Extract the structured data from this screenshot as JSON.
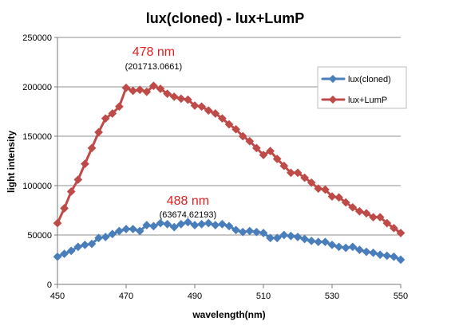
{
  "chart_data": {
    "type": "line",
    "title": "lux(cloned) - lux+LumP",
    "xlabel": "wavelength(nm)",
    "ylabel": "light intensity",
    "xlim": [
      450,
      550
    ],
    "ylim": [
      0,
      250000
    ],
    "x_ticks": [
      450,
      470,
      490,
      510,
      530,
      550
    ],
    "y_ticks": [
      0,
      50000,
      100000,
      150000,
      200000,
      250000
    ],
    "y_tick_labels": [
      "0",
      "50000",
      "100000",
      "150000",
      "200000",
      "250000"
    ],
    "grid": "horizontal",
    "legend_position": "right",
    "x": [
      450,
      452,
      454,
      456,
      458,
      460,
      462,
      464,
      466,
      468,
      470,
      472,
      474,
      476,
      478,
      480,
      482,
      484,
      486,
      488,
      490,
      492,
      494,
      496,
      498,
      500,
      502,
      504,
      506,
      508,
      510,
      512,
      514,
      516,
      518,
      520,
      522,
      524,
      526,
      528,
      530,
      532,
      534,
      536,
      538,
      540,
      542,
      544,
      546,
      548,
      550
    ],
    "series": [
      {
        "name": "lux(cloned)",
        "color": "#4a7ebb",
        "values": [
          28000,
          31000,
          34000,
          38000,
          40000,
          41000,
          47000,
          48000,
          51000,
          54000,
          56000,
          56000,
          54000,
          60000,
          59000,
          62000,
          61000,
          58000,
          61000,
          63000,
          60000,
          61000,
          62000,
          60000,
          61000,
          59000,
          55000,
          53000,
          54000,
          53000,
          52000,
          47000,
          47000,
          50000,
          49000,
          48000,
          46000,
          44000,
          43000,
          43000,
          40000,
          38000,
          37000,
          38000,
          35000,
          33000,
          32000,
          30000,
          29000,
          28000,
          25000
        ]
      },
      {
        "name": "lux+LumP",
        "color": "#be4b48",
        "values": [
          62000,
          77000,
          94000,
          106000,
          122000,
          138000,
          154000,
          168000,
          173000,
          180000,
          199000,
          196000,
          197000,
          195000,
          201000,
          198000,
          193000,
          190000,
          188000,
          187000,
          181000,
          180000,
          176000,
          173000,
          168000,
          162000,
          157000,
          150000,
          145000,
          138000,
          131000,
          135000,
          127000,
          120000,
          113000,
          113000,
          108000,
          103000,
          97000,
          96000,
          89000,
          88000,
          83000,
          78000,
          74000,
          72000,
          68000,
          68000,
          62000,
          57000,
          52000
        ]
      }
    ],
    "annotations": [
      {
        "label": "478 nm",
        "value_text": "(201713.0661)",
        "x": 478,
        "y": 201713.0661
      },
      {
        "label": "488 nm",
        "value_text": "(63674.62193)",
        "x": 488,
        "y": 63674.62193
      }
    ]
  }
}
